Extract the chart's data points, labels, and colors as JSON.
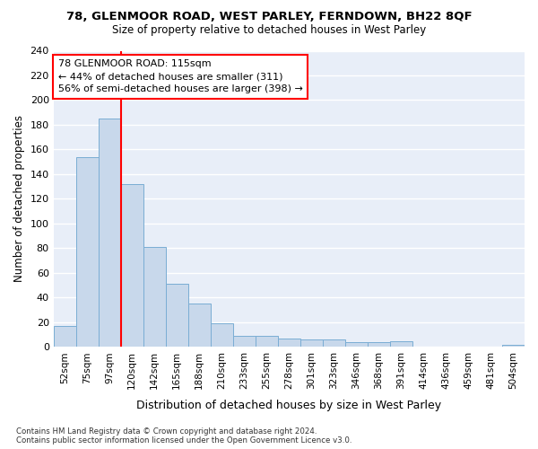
{
  "title1": "78, GLENMOOR ROAD, WEST PARLEY, FERNDOWN, BH22 8QF",
  "title2": "Size of property relative to detached houses in West Parley",
  "xlabel": "Distribution of detached houses by size in West Parley",
  "ylabel": "Number of detached properties",
  "categories": [
    "52sqm",
    "75sqm",
    "97sqm",
    "120sqm",
    "142sqm",
    "165sqm",
    "188sqm",
    "210sqm",
    "233sqm",
    "255sqm",
    "278sqm",
    "301sqm",
    "323sqm",
    "346sqm",
    "368sqm",
    "391sqm",
    "414sqm",
    "436sqm",
    "459sqm",
    "481sqm",
    "504sqm"
  ],
  "values": [
    17,
    154,
    185,
    132,
    81,
    51,
    35,
    19,
    9,
    9,
    7,
    6,
    6,
    4,
    4,
    5,
    0,
    0,
    0,
    0,
    2
  ],
  "bar_color": "#c8d8eb",
  "bar_edge_color": "#7aadd4",
  "vline_color": "red",
  "vline_position": 3,
  "annotation_text": "78 GLENMOOR ROAD: 115sqm\n← 44% of detached houses are smaller (311)\n56% of semi-detached houses are larger (398) →",
  "annotation_box_color": "white",
  "annotation_box_edge": "red",
  "footnote": "Contains HM Land Registry data © Crown copyright and database right 2024.\nContains public sector information licensed under the Open Government Licence v3.0.",
  "ylim": [
    0,
    240
  ],
  "yticks": [
    0,
    20,
    40,
    60,
    80,
    100,
    120,
    140,
    160,
    180,
    200,
    220,
    240
  ],
  "fig_bg": "#ffffff",
  "plot_bg": "#e8eef8",
  "grid_color": "#ffffff"
}
